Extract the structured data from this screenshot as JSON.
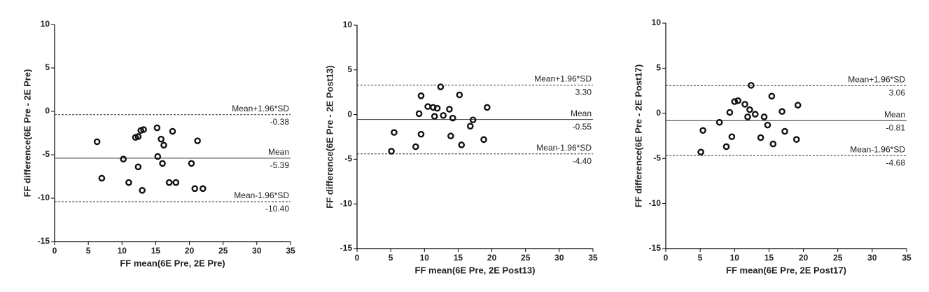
{
  "chart_data": [
    {
      "type": "scatter",
      "xlabel": "FF mean(6E Pre, 2E Pre)",
      "ylabel": "FF difference(6E Pre - 2E Pre)",
      "xlim": [
        0,
        35
      ],
      "ylim": [
        -15,
        10
      ],
      "xticks": [
        0,
        5,
        10,
        15,
        20,
        25,
        30,
        35
      ],
      "yticks": [
        -15,
        -10,
        -5,
        0,
        5,
        10
      ],
      "color": "#111111",
      "x": [
        6.3,
        7,
        10.2,
        11,
        12,
        12.4,
        12.8,
        13.2,
        12.4,
        13,
        15.2,
        15.3,
        15.8,
        16.2,
        16,
        17,
        17.5,
        18,
        20.3,
        20.8,
        21.2,
        22
      ],
      "y": [
        -3.5,
        -7.7,
        -5.5,
        -8.2,
        -3.0,
        -2.9,
        -2.2,
        -2.1,
        -6.4,
        -9.1,
        -1.9,
        -5.2,
        -3.2,
        -3.9,
        -6.0,
        -8.2,
        -2.3,
        -8.2,
        -6.0,
        -8.9,
        -3.4,
        -8.9
      ],
      "lines": [
        {
          "name": "Mean+1.96*SD",
          "value": -0.38,
          "style": "dashed"
        },
        {
          "name": "Mean",
          "value": -5.39,
          "style": "solid"
        },
        {
          "name": "Mean-1.96*SD",
          "value": -10.4,
          "value_label": "-10.40",
          "style": "dashed"
        }
      ]
    },
    {
      "type": "scatter",
      "xlabel": "FF mean(6E Pre, 2E Post13)",
      "ylabel": "FF difference(6E Pre - 2E Post13)",
      "xlim": [
        0,
        35
      ],
      "ylim": [
        -15,
        10
      ],
      "xticks": [
        0,
        5,
        10,
        15,
        20,
        25,
        30,
        35
      ],
      "yticks": [
        -15,
        -10,
        -5,
        0,
        5,
        10
      ],
      "color": "#111111",
      "x": [
        5.1,
        5.5,
        8.7,
        9.2,
        9.5,
        9.5,
        10.5,
        11.3,
        11.5,
        11.9,
        12.4,
        12.8,
        13.7,
        13.9,
        14.2,
        15.2,
        15.5,
        16.8,
        17.2,
        18.8,
        19.3
      ],
      "y": [
        -4.1,
        -2.0,
        -3.6,
        0.1,
        2.1,
        -2.2,
        0.9,
        0.8,
        -0.2,
        0.7,
        3.1,
        -0.1,
        0.6,
        -2.4,
        -0.4,
        2.2,
        -3.4,
        -1.3,
        -0.6,
        -2.8,
        0.8
      ],
      "lines": [
        {
          "name": "Mean+1.96*SD",
          "value": 3.3,
          "value_label": "3.30",
          "style": "dashed"
        },
        {
          "name": "Mean",
          "value": -0.55,
          "style": "solid"
        },
        {
          "name": "Mean-1.96*SD",
          "value": -4.4,
          "value_label": "-4.40",
          "style": "dashed"
        }
      ]
    },
    {
      "type": "scatter",
      "xlabel": "FF mean(6E Pre, 2E Post17)",
      "ylabel": "FF difference(6E Pre - 2E Post17)",
      "xlim": [
        0,
        35
      ],
      "ylim": [
        -15,
        10
      ],
      "xticks": [
        0,
        5,
        10,
        15,
        20,
        25,
        30,
        35
      ],
      "yticks": [
        -15,
        -10,
        -5,
        0,
        5,
        10
      ],
      "color": "#111111",
      "x": [
        5.1,
        5.4,
        7.8,
        8.8,
        9.3,
        9.6,
        10,
        10.5,
        11.5,
        11.9,
        12.2,
        12.4,
        13,
        13.8,
        14.3,
        14.8,
        15.4,
        15.6,
        16.9,
        17.3,
        19,
        19.2
      ],
      "y": [
        -4.3,
        -1.9,
        -1.0,
        -3.7,
        0.1,
        -2.6,
        1.3,
        1.4,
        1.0,
        -0.4,
        0.4,
        3.1,
        -0.1,
        -2.7,
        -0.4,
        -1.3,
        1.9,
        -3.4,
        0.2,
        -2.0,
        -2.9,
        0.9
      ],
      "lines": [
        {
          "name": "Mean+1.96*SD",
          "value": 3.06,
          "style": "dashed"
        },
        {
          "name": "Mean",
          "value": -0.81,
          "style": "solid"
        },
        {
          "name": "Mean-1.96*SD",
          "value": -4.68,
          "style": "dashed"
        }
      ]
    }
  ]
}
